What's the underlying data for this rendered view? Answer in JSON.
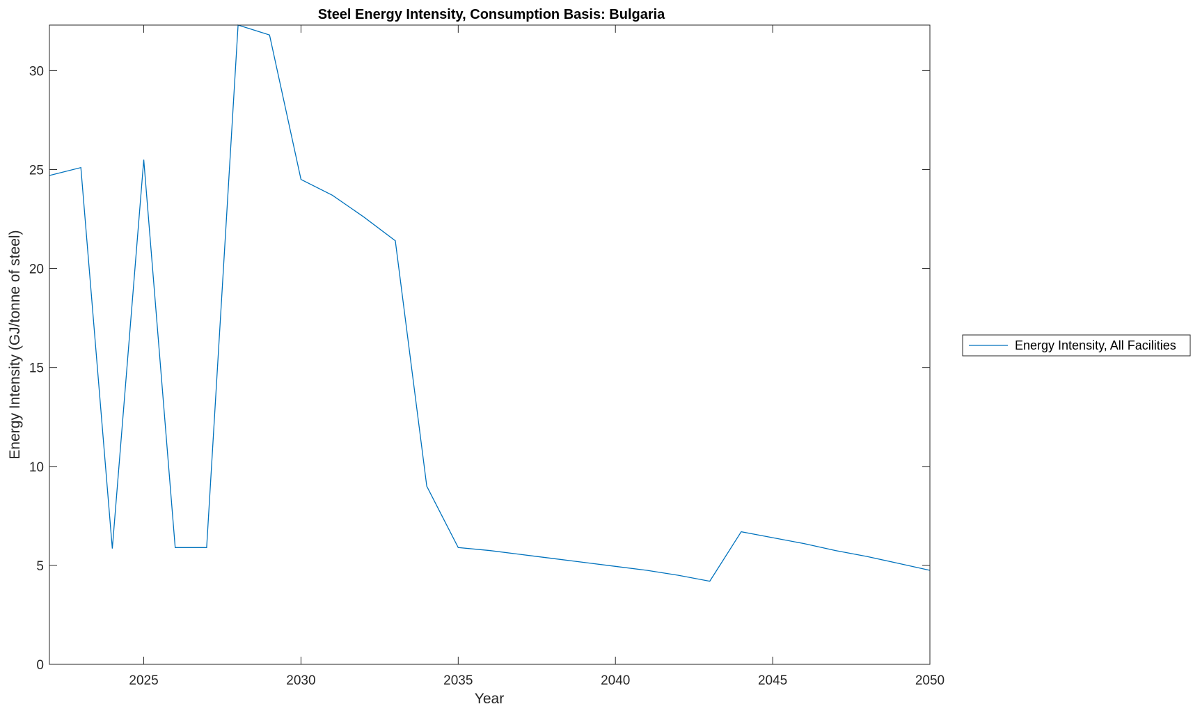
{
  "chart_data": {
    "type": "line",
    "title": "Steel Energy Intensity, Consumption Basis: Bulgaria",
    "xlabel": "Year",
    "ylabel": "Energy Intensity (GJ/tonne of steel)",
    "xlim": [
      2022,
      2050
    ],
    "ylim": [
      0,
      32.3
    ],
    "xticks": [
      2025,
      2030,
      2035,
      2040,
      2045,
      2050
    ],
    "yticks": [
      0,
      5,
      10,
      15,
      20,
      25,
      30
    ],
    "grid": false,
    "legend_position": "outside-right",
    "series": [
      {
        "name": "Energy Intensity, All Facilities",
        "color": "#0072BD",
        "x": [
          2022,
          2023,
          2024,
          2025,
          2026,
          2027,
          2028,
          2029,
          2030,
          2031,
          2032,
          2033,
          2034,
          2035,
          2036,
          2037,
          2038,
          2039,
          2040,
          2041,
          2042,
          2043,
          2044,
          2045,
          2046,
          2047,
          2048,
          2049,
          2050
        ],
        "y": [
          24.7,
          25.1,
          5.85,
          25.5,
          5.9,
          5.9,
          32.3,
          31.8,
          24.5,
          23.7,
          22.6,
          21.4,
          9.0,
          5.9,
          5.75,
          5.55,
          5.35,
          5.15,
          4.95,
          4.75,
          4.5,
          4.2,
          6.7,
          6.4,
          6.1,
          5.75,
          5.45,
          5.1,
          4.75
        ]
      }
    ]
  }
}
